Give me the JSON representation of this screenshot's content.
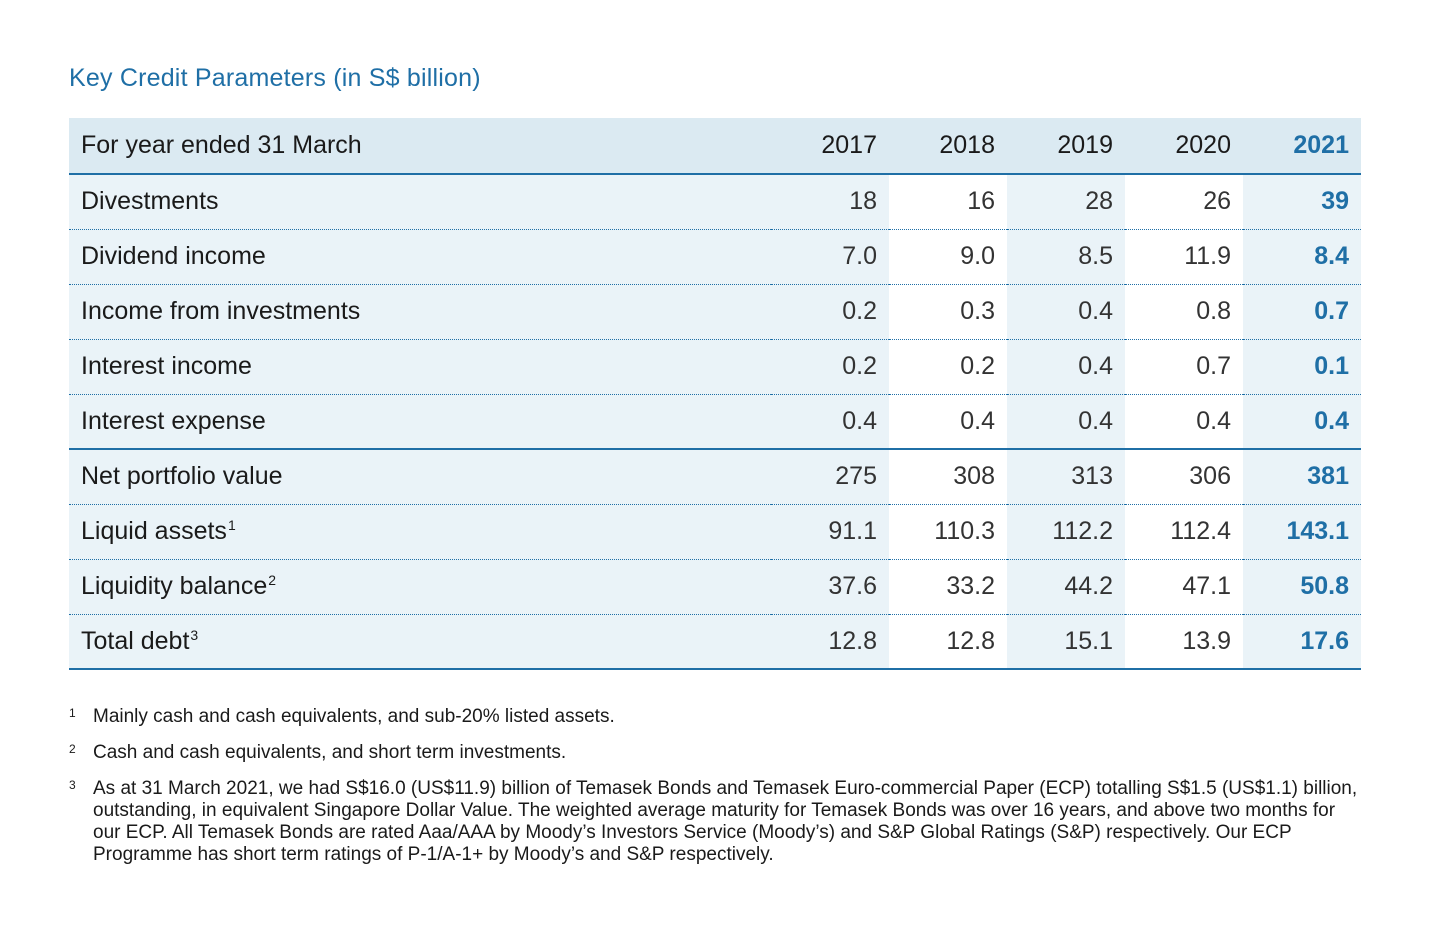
{
  "title": "Key Credit Parameters (in S$ billion)",
  "table": {
    "header": {
      "label": "For year ended 31 March",
      "years": [
        "2017",
        "2018",
        "2019",
        "2020",
        "2021"
      ]
    },
    "rows": [
      {
        "label": "Divestments",
        "fn": "",
        "values": [
          "18",
          "16",
          "28",
          "26",
          "39"
        ]
      },
      {
        "label": "Dividend income",
        "fn": "",
        "values": [
          "7.0",
          "9.0",
          "8.5",
          "11.9",
          "8.4"
        ]
      },
      {
        "label": "Income from investments",
        "fn": "",
        "values": [
          "0.2",
          "0.3",
          "0.4",
          "0.8",
          "0.7"
        ]
      },
      {
        "label": "Interest income",
        "fn": "",
        "values": [
          "0.2",
          "0.2",
          "0.4",
          "0.7",
          "0.1"
        ]
      },
      {
        "label": "Interest expense",
        "fn": "",
        "values": [
          "0.4",
          "0.4",
          "0.4",
          "0.4",
          "0.4"
        ]
      },
      {
        "label": "Net portfolio value",
        "fn": "",
        "values": [
          "275",
          "308",
          "313",
          "306",
          "381"
        ]
      },
      {
        "label": "Liquid assets",
        "fn": "1",
        "values": [
          "91.1",
          "110.3",
          "112.2",
          "112.4",
          "143.1"
        ]
      },
      {
        "label": "Liquidity balance",
        "fn": "2",
        "values": [
          "37.6",
          "33.2",
          "44.2",
          "47.1",
          "50.8"
        ]
      },
      {
        "label": "Total debt",
        "fn": "3",
        "values": [
          "12.8",
          "12.8",
          "15.1",
          "13.9",
          "17.6"
        ]
      }
    ]
  },
  "footnotes": [
    {
      "mark": "1",
      "text": "Mainly cash and cash equivalents, and sub-20% listed assets."
    },
    {
      "mark": "2",
      "text": "Cash and cash equivalents, and short term investments."
    },
    {
      "mark": "3",
      "text": "As at 31 March 2021, we had S$16.0 (US$11.9) billion of Temasek Bonds and Temasek Euro-commercial Paper (ECP) totalling S$1.5 (US$1.1) billion, outstanding, in equivalent Singapore Dollar Value. The weighted average maturity for Temasek Bonds was over 16 years, and above two months for our ECP. All Temasek Bonds are rated Aaa/AAA by Moody’s Investors Service (Moody’s) and S&P Global Ratings (S&P) respectively. Our ECP Programme has short term ratings of P-1/A-1+ by Moody’s and S&P respectively."
    }
  ],
  "colors": {
    "accent": "#1f6fa6",
    "header_bg": "#dbeaf2",
    "shade_bg": "#eaf3f8"
  }
}
